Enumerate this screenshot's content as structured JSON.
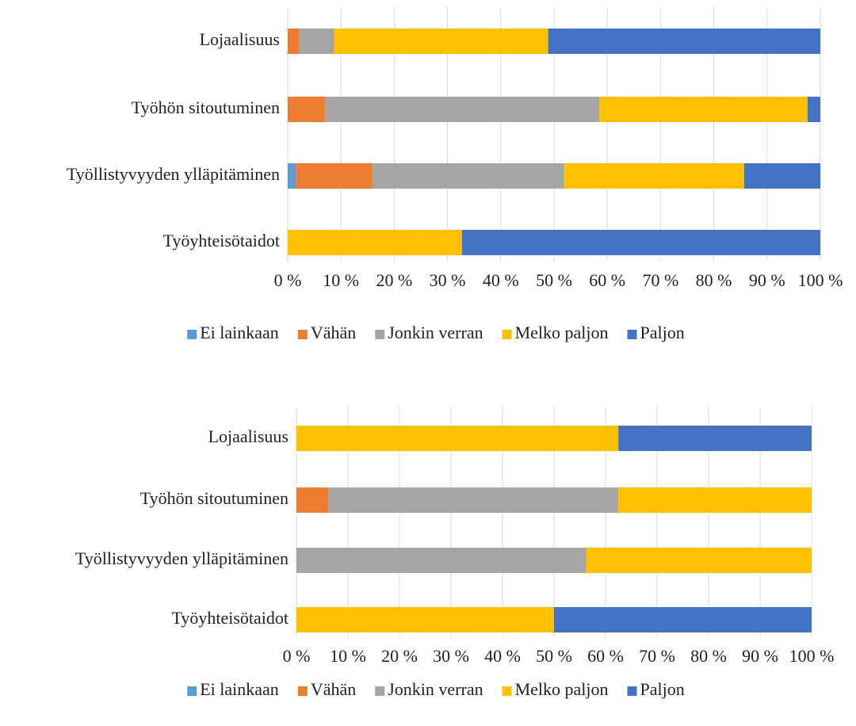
{
  "chart_data": [
    {
      "type": "bar",
      "orientation": "horizontal",
      "stacked": true,
      "grid": true,
      "legend": "bottom",
      "categories": [
        "Lojaalisuus",
        "Työhön sitoutuminen",
        "Työllistyvyyden ylläpitäminen",
        "Työyhteisötaidot"
      ],
      "series": [
        {
          "name": "Ei lainkaan",
          "color": "#5b9bd5",
          "values": [
            0,
            0,
            1.5,
            0
          ]
        },
        {
          "name": "Vähän",
          "color": "#ed7d31",
          "values": [
            2.2,
            7.1,
            14.4,
            0
          ]
        },
        {
          "name": "Jonkin verran",
          "color": "#a5a5a5",
          "values": [
            6.5,
            51.4,
            36.0,
            0
          ]
        },
        {
          "name": "Melko paljon",
          "color": "#ffc000",
          "values": [
            40.2,
            39.1,
            33.8,
            32.7
          ]
        },
        {
          "name": "Paljon",
          "color": "#4472c4",
          "values": [
            51.1,
            2.4,
            14.3,
            67.3
          ]
        }
      ],
      "xlim": [
        0,
        100
      ],
      "xticks": [
        {
          "value": 0,
          "label": "0 %"
        },
        {
          "value": 10,
          "label": "10 %"
        },
        {
          "value": 20,
          "label": "20 %"
        },
        {
          "value": 30,
          "label": "30 %"
        },
        {
          "value": 40,
          "label": "40 %"
        },
        {
          "value": 50,
          "label": "50 %"
        },
        {
          "value": 60,
          "label": "60 %"
        },
        {
          "value": 70,
          "label": "70 %"
        },
        {
          "value": 80,
          "label": "80 %"
        },
        {
          "value": 90,
          "label": "90 %"
        },
        {
          "value": 100,
          "label": "100 %"
        }
      ]
    },
    {
      "type": "bar",
      "orientation": "horizontal",
      "stacked": true,
      "grid": true,
      "legend": "bottom",
      "categories": [
        "Lojaalisuus",
        "Työhön sitoutuminen",
        "Työllistyvyyden ylläpitäminen",
        "Työyhteisötaidot"
      ],
      "series": [
        {
          "name": "Ei lainkaan",
          "color": "#5b9bd5",
          "values": [
            0,
            0,
            0,
            0
          ]
        },
        {
          "name": "Vähän",
          "color": "#ed7d31",
          "values": [
            0,
            6.2,
            0,
            0
          ]
        },
        {
          "name": "Jonkin verran",
          "color": "#a5a5a5",
          "values": [
            0,
            56.3,
            56.25,
            0
          ]
        },
        {
          "name": "Melko paljon",
          "color": "#ffc000",
          "values": [
            62.5,
            37.5,
            43.75,
            50
          ]
        },
        {
          "name": "Paljon",
          "color": "#4472c4",
          "values": [
            37.5,
            0,
            0,
            50
          ]
        }
      ],
      "xlim": [
        0,
        100
      ],
      "xticks": [
        {
          "value": 0,
          "label": "0 %"
        },
        {
          "value": 10,
          "label": "10 %"
        },
        {
          "value": 20,
          "label": "20 %"
        },
        {
          "value": 30,
          "label": "30 %"
        },
        {
          "value": 40,
          "label": "40 %"
        },
        {
          "value": 50,
          "label": "50 %"
        },
        {
          "value": 60,
          "label": "60 %"
        },
        {
          "value": 70,
          "label": "70 %"
        },
        {
          "value": 80,
          "label": "80 %"
        },
        {
          "value": 90,
          "label": "90 %"
        },
        {
          "value": 100,
          "label": "100 %"
        }
      ]
    }
  ]
}
